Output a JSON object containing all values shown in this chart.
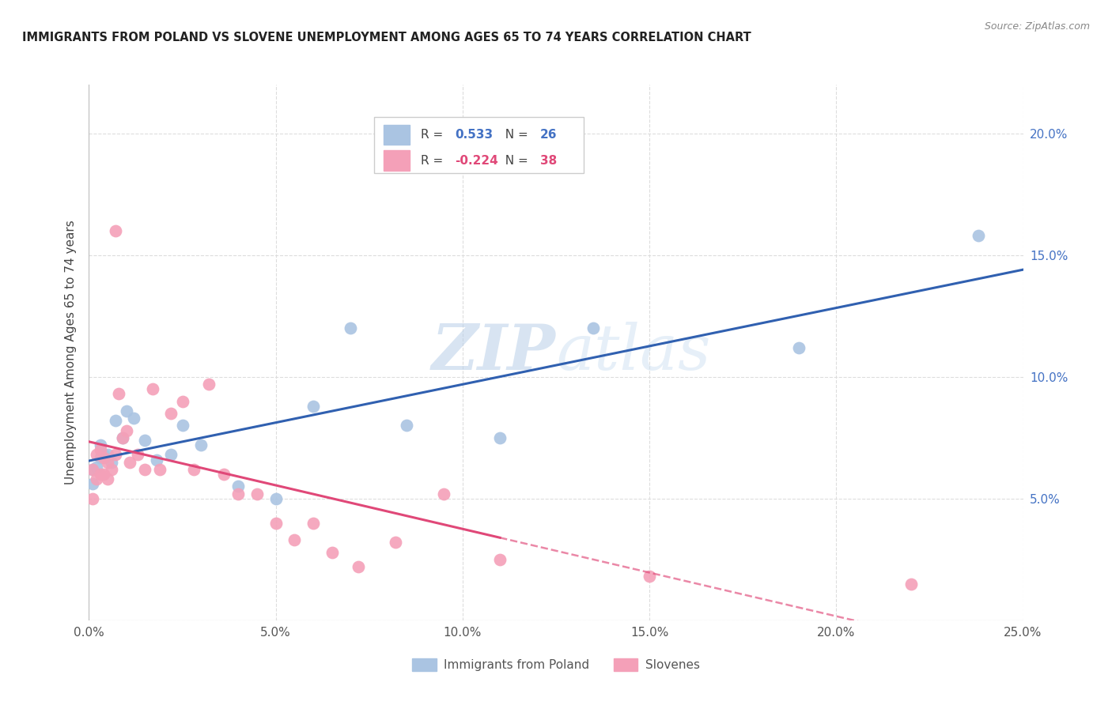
{
  "title": "IMMIGRANTS FROM POLAND VS SLOVENE UNEMPLOYMENT AMONG AGES 65 TO 74 YEARS CORRELATION CHART",
  "source": "Source: ZipAtlas.com",
  "ylabel": "Unemployment Among Ages 65 to 74 years",
  "xlim": [
    0.0,
    0.25
  ],
  "ylim": [
    0.0,
    0.22
  ],
  "xtick_vals": [
    0.0,
    0.05,
    0.1,
    0.15,
    0.2,
    0.25
  ],
  "ytick_vals": [
    0.0,
    0.05,
    0.1,
    0.15,
    0.2
  ],
  "poland_R": "0.533",
  "poland_N": "26",
  "slovene_R": "-0.224",
  "slovene_N": "38",
  "poland_color": "#aac4e2",
  "poland_line_color": "#3060b0",
  "slovene_color": "#f4a0b8",
  "slovene_line_color": "#e04878",
  "legend_label_poland": "Immigrants from Poland",
  "legend_label_slovene": "Slovenes",
  "poland_x": [
    0.001,
    0.001,
    0.002,
    0.003,
    0.003,
    0.004,
    0.005,
    0.006,
    0.007,
    0.009,
    0.01,
    0.012,
    0.015,
    0.018,
    0.022,
    0.025,
    0.03,
    0.04,
    0.05,
    0.06,
    0.07,
    0.085,
    0.11,
    0.135,
    0.19,
    0.238
  ],
  "poland_y": [
    0.056,
    0.062,
    0.063,
    0.067,
    0.072,
    0.068,
    0.068,
    0.065,
    0.082,
    0.075,
    0.086,
    0.083,
    0.074,
    0.066,
    0.068,
    0.08,
    0.072,
    0.055,
    0.05,
    0.088,
    0.12,
    0.08,
    0.075,
    0.12,
    0.112,
    0.158
  ],
  "slovene_x": [
    0.001,
    0.001,
    0.002,
    0.002,
    0.003,
    0.003,
    0.004,
    0.004,
    0.005,
    0.005,
    0.006,
    0.007,
    0.007,
    0.008,
    0.009,
    0.01,
    0.011,
    0.013,
    0.015,
    0.017,
    0.019,
    0.022,
    0.025,
    0.028,
    0.032,
    0.036,
    0.04,
    0.045,
    0.05,
    0.055,
    0.06,
    0.065,
    0.072,
    0.082,
    0.095,
    0.11,
    0.15,
    0.22
  ],
  "slovene_y": [
    0.05,
    0.062,
    0.058,
    0.068,
    0.06,
    0.07,
    0.06,
    0.067,
    0.058,
    0.065,
    0.062,
    0.068,
    0.16,
    0.093,
    0.075,
    0.078,
    0.065,
    0.068,
    0.062,
    0.095,
    0.062,
    0.085,
    0.09,
    0.062,
    0.097,
    0.06,
    0.052,
    0.052,
    0.04,
    0.033,
    0.04,
    0.028,
    0.022,
    0.032,
    0.052,
    0.025,
    0.018,
    0.015
  ]
}
